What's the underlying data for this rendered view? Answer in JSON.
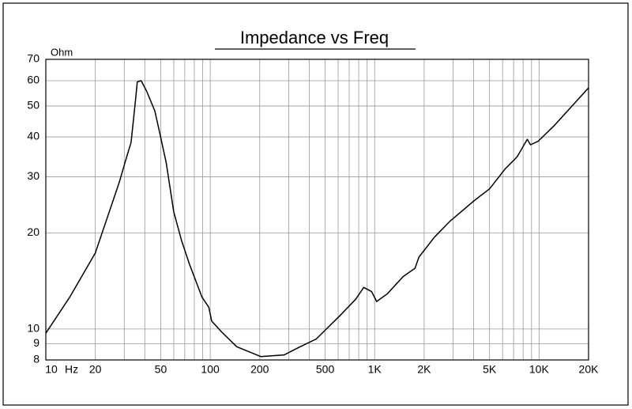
{
  "chart_data": {
    "type": "line",
    "title": "Impedance vs Freq",
    "x_label": "Hz",
    "y_label": "Ohm",
    "x": [
      10,
      14,
      20,
      25,
      28,
      31,
      33,
      35,
      36,
      38,
      41,
      46,
      49,
      54,
      60,
      67,
      75,
      89,
      98,
      102,
      117,
      145,
      203,
      282,
      352,
      441,
      614,
      767,
      858,
      958,
      1029,
      1196,
      1490,
      1760,
      1860,
      2310,
      2880,
      4010,
      5000,
      6240,
      7350,
      8480,
      8870,
      9890,
      12430,
      20000
    ],
    "values": [
      9.7,
      12.6,
      17.3,
      24.3,
      28.9,
      34.6,
      38.4,
      51.2,
      59.5,
      60,
      55.7,
      48.3,
      41.8,
      33.2,
      23.3,
      18.9,
      15.9,
      12.6,
      11.7,
      10.6,
      9.8,
      8.8,
      8.2,
      8.3,
      8.8,
      9.3,
      11,
      12.4,
      13.5,
      13.1,
      12.2,
      12.9,
      14.6,
      15.5,
      16.8,
      19.4,
      21.8,
      25.2,
      27.5,
      31.8,
      34.6,
      39.3,
      37.8,
      38.8,
      43.5,
      57
    ],
    "color": "#000000",
    "log_x": true,
    "log_y": true,
    "xlim": [
      10,
      20000
    ],
    "ylim": [
      8,
      70
    ],
    "xticks": [
      10,
      20,
      50,
      100,
      200,
      500,
      {
        "value": 1000,
        "label": "1K"
      },
      {
        "value": 2000,
        "label": "2K"
      },
      {
        "value": 5000,
        "label": "5K"
      },
      {
        "value": 10000,
        "label": "10K"
      },
      {
        "value": 20000,
        "label": "20K"
      }
    ],
    "xgrid": [
      20,
      30,
      40,
      50,
      60,
      70,
      80,
      90,
      100,
      200,
      300,
      400,
      500,
      600,
      700,
      800,
      900,
      1000,
      2000,
      3000,
      4000,
      5000,
      6000,
      7000,
      8000,
      9000,
      10000
    ],
    "yticks": [
      8,
      9,
      10,
      20,
      30,
      40,
      50,
      60,
      70
    ],
    "grid": true
  }
}
